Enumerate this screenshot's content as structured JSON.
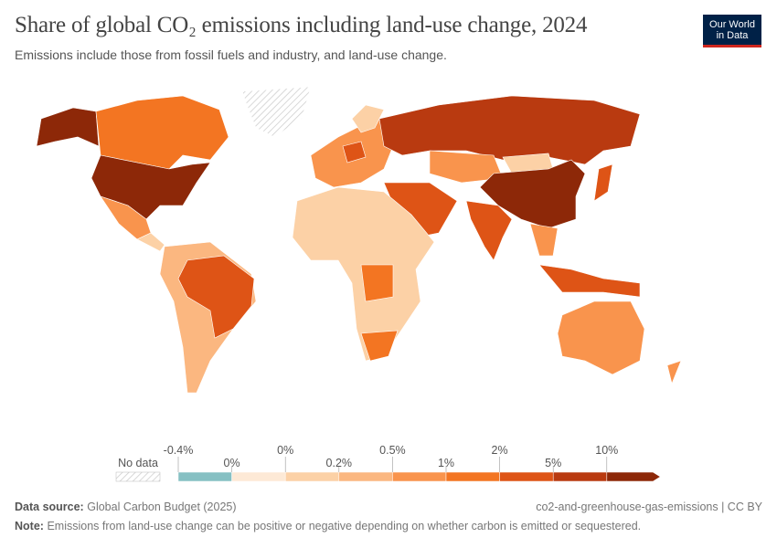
{
  "header": {
    "title": "Share of global CO₂ emissions including land-use change, 2024",
    "subtitle": "Emissions include those from fossil fuels and industry, and land-use change.",
    "logo": [
      "Our World",
      "in Data"
    ]
  },
  "legend": {
    "no_data": "No data",
    "labels": [
      "-0.4%",
      "0%",
      "0%",
      "0.2%",
      "0.5%",
      "1%",
      "2%",
      "5%",
      "10%"
    ],
    "colors": [
      "#86c0c3",
      "#fde9d6",
      "#fcd1a6",
      "#fbb780",
      "#f9944d",
      "#f37522",
      "#de5416",
      "#b93a10",
      "#8d2808"
    ]
  },
  "footer": {
    "source_label": "Data source:",
    "source": "Global Carbon Budget (2025)",
    "slug": "co2-and-greenhouse-gas-emissions | CC BY",
    "note_label": "Note:",
    "note": "Emissions from land-use change can be positive or negative depending on whether carbon is emitted or sequestered."
  }
}
